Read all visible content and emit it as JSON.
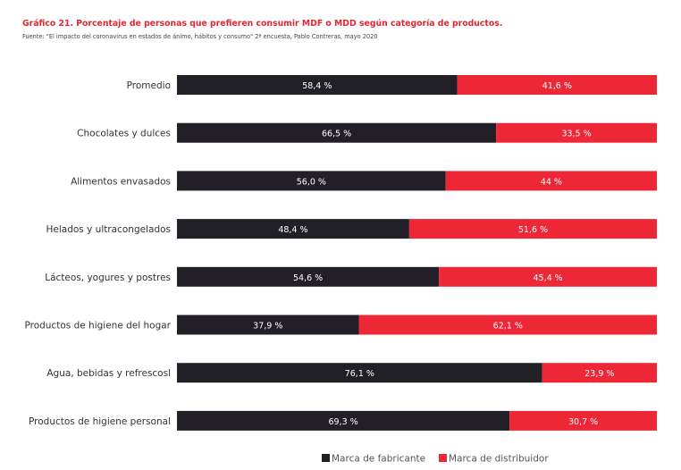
{
  "chart_data": {
    "type": "bar",
    "orientation": "horizontal",
    "stacked": true,
    "title": "Gráfico 21. Porcentaje de personas que prefieren consumir MDF o MDD según categoría de productos.",
    "subtitle": "Fuente: \"El impacto del coronavirus en estados de ánimo, hábitos y consumo\" 2ª encuesta, Pablo Contreras, mayo 2020",
    "categories": [
      "Promedio",
      "Chocolates y dulces",
      "Alimentos envasados",
      "Helados y ultracongelados",
      "Lácteos, yogures y postres",
      "Productos de higiene del hogar",
      "Agua, bebidas y refrescosl",
      "Productos de  higiene personal"
    ],
    "series": [
      {
        "name": "Marca de fabricante",
        "color": "#231f26",
        "values": [
          58.4,
          66.5,
          56.0,
          48.4,
          54.6,
          37.9,
          76.1,
          69.3
        ],
        "labels": [
          "58,4 %",
          "66,5 %",
          "56,0 %",
          "48,4 %",
          "54,6 %",
          "37,9 %",
          "76,1 %",
          "69,3 %"
        ]
      },
      {
        "name": "Marca de distribuidor",
        "color": "#ee2737",
        "values": [
          41.6,
          33.5,
          44,
          51.6,
          45.4,
          62.1,
          23.9,
          30.7
        ],
        "labels": [
          "41,6 %",
          "33,5 %",
          "44 %",
          "51,6 %",
          "45,4 %",
          "62,1 %",
          "23,9 %",
          "30,7 %"
        ]
      }
    ],
    "xlim": [
      0,
      100
    ],
    "grid": false,
    "legend": "bottom-right"
  }
}
